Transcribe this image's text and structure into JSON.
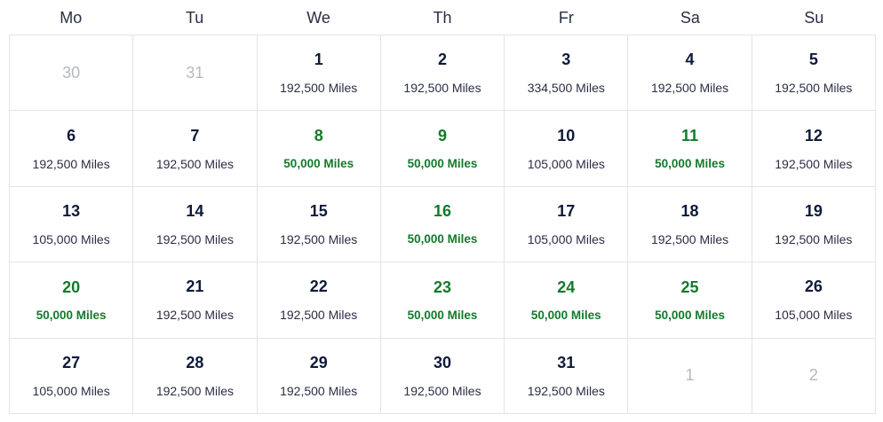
{
  "weekdays": [
    "Mo",
    "Tu",
    "We",
    "Th",
    "Fr",
    "Sa",
    "Su"
  ],
  "colors": {
    "deal": "#137a2b",
    "normal": "#0f1a3a",
    "outside": "#b5b8bf"
  },
  "days": [
    {
      "day": "30",
      "out": true
    },
    {
      "day": "31",
      "out": true
    },
    {
      "day": "1",
      "miles": "192,500 Miles"
    },
    {
      "day": "2",
      "miles": "192,500 Miles"
    },
    {
      "day": "3",
      "miles": "334,500 Miles"
    },
    {
      "day": "4",
      "miles": "192,500 Miles"
    },
    {
      "day": "5",
      "miles": "192,500 Miles"
    },
    {
      "day": "6",
      "miles": "192,500 Miles"
    },
    {
      "day": "7",
      "miles": "192,500 Miles"
    },
    {
      "day": "8",
      "miles": "50,000 Miles",
      "deal": true
    },
    {
      "day": "9",
      "miles": "50,000 Miles",
      "deal": true
    },
    {
      "day": "10",
      "miles": "105,000 Miles"
    },
    {
      "day": "11",
      "miles": "50,000 Miles",
      "deal": true
    },
    {
      "day": "12",
      "miles": "192,500 Miles"
    },
    {
      "day": "13",
      "miles": "105,000 Miles"
    },
    {
      "day": "14",
      "miles": "192,500 Miles"
    },
    {
      "day": "15",
      "miles": "192,500 Miles"
    },
    {
      "day": "16",
      "miles": "50,000 Miles",
      "deal": true
    },
    {
      "day": "17",
      "miles": "105,000 Miles"
    },
    {
      "day": "18",
      "miles": "192,500 Miles"
    },
    {
      "day": "19",
      "miles": "192,500 Miles"
    },
    {
      "day": "20",
      "miles": "50,000 Miles",
      "deal": true
    },
    {
      "day": "21",
      "miles": "192,500 Miles"
    },
    {
      "day": "22",
      "miles": "192,500 Miles"
    },
    {
      "day": "23",
      "miles": "50,000 Miles",
      "deal": true
    },
    {
      "day": "24",
      "miles": "50,000 Miles",
      "deal": true
    },
    {
      "day": "25",
      "miles": "50,000 Miles",
      "deal": true
    },
    {
      "day": "26",
      "miles": "105,000 Miles"
    },
    {
      "day": "27",
      "miles": "105,000 Miles"
    },
    {
      "day": "28",
      "miles": "192,500 Miles"
    },
    {
      "day": "29",
      "miles": "192,500 Miles"
    },
    {
      "day": "30",
      "miles": "192,500 Miles"
    },
    {
      "day": "31",
      "miles": "192,500 Miles"
    },
    {
      "day": "1",
      "out": true
    },
    {
      "day": "2",
      "out": true
    }
  ]
}
